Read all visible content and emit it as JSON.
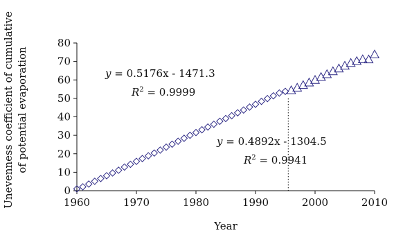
{
  "chart_data": {
    "type": "scatter",
    "title": "",
    "xlabel": "Year",
    "ylabel_lines": [
      "Unevenness coefficient of cumulative",
      "of potential evaporation"
    ],
    "xlim": [
      1960,
      2010
    ],
    "ylim": [
      0,
      80
    ],
    "xticks": [
      "1960",
      "1970",
      "1980",
      "1990",
      "2000",
      "2010"
    ],
    "yticks": [
      "0",
      "10",
      "20",
      "30",
      "40",
      "50",
      "60",
      "70",
      "80"
    ],
    "grid": false,
    "marker_color": "#2e2a86",
    "divider_year": 1995.5,
    "series": [
      {
        "marker": "diamond",
        "x": [
          1960,
          1961,
          1962,
          1963,
          1964,
          1965,
          1966,
          1967,
          1968,
          1969,
          1970,
          1971,
          1972,
          1973,
          1974,
          1975,
          1976,
          1977,
          1978,
          1979,
          1980,
          1981,
          1982,
          1983,
          1984,
          1985,
          1986,
          1987,
          1988,
          1989,
          1990,
          1991,
          1992,
          1993,
          1994,
          1995
        ],
        "y": [
          1.0,
          2.1,
          3.6,
          5.1,
          6.6,
          8.1,
          9.6,
          11.1,
          12.8,
          14.3,
          15.9,
          17.4,
          18.9,
          20.4,
          22.0,
          23.6,
          25.2,
          26.8,
          28.4,
          30.0,
          31.5,
          33.0,
          34.5,
          36.0,
          37.6,
          39.1,
          40.6,
          42.2,
          43.7,
          45.3,
          46.8,
          48.4,
          49.9,
          51.4,
          52.9,
          53.8
        ]
      },
      {
        "marker": "triangle",
        "x": [
          1996,
          1997,
          1998,
          1999,
          2000,
          2001,
          2002,
          2003,
          2004,
          2005,
          2006,
          2007,
          2008,
          2009,
          2010
        ],
        "y": [
          54.4,
          55.8,
          57.2,
          58.6,
          60.0,
          61.6,
          63.1,
          64.7,
          66.2,
          67.7,
          69.2,
          70.2,
          71.2,
          71.1,
          73.8
        ]
      }
    ],
    "annotations": [
      {
        "eq_y": "y",
        "eq_rest": " = 0.5176x - 1471.3",
        "r2_label": "R",
        "r2_sup": "2",
        "r2_rest": " = 0.9999"
      },
      {
        "eq_y": "y",
        "eq_rest": " = 0.4892x - 1304.5",
        "r2_label": "R",
        "r2_sup": "2",
        "r2_rest": " = 0.9941"
      }
    ]
  }
}
